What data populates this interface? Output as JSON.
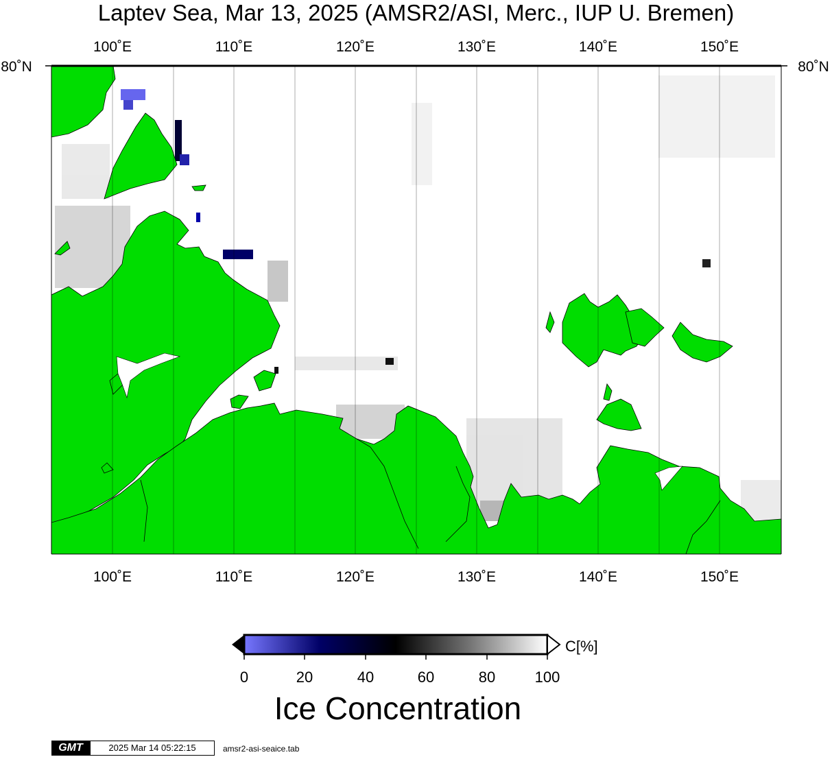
{
  "title": "Laptev Sea, Mar 13, 2025 (AMSR2/ASI, Merc., IUP U. Bremen)",
  "map": {
    "longitude_labels": [
      "100˚E",
      "110˚E",
      "120˚E",
      "130˚E",
      "140˚E",
      "150˚E"
    ],
    "latitude_label": "80˚N",
    "land_color": "#00dd00",
    "ocean_ice_color": "#ffffff"
  },
  "colorbar": {
    "unit": "C[%]",
    "ticks": [
      "0",
      "20",
      "40",
      "60",
      "80",
      "100"
    ],
    "title": "Ice Concentration",
    "gradient": [
      "#7777ff",
      "#000066",
      "#000000",
      "#777777",
      "#ffffff"
    ]
  },
  "footer": {
    "logo": "GMT",
    "timestamp": "2025 Mar 14 05:22:15",
    "file": "amsr2-asi-seaice.tab"
  }
}
